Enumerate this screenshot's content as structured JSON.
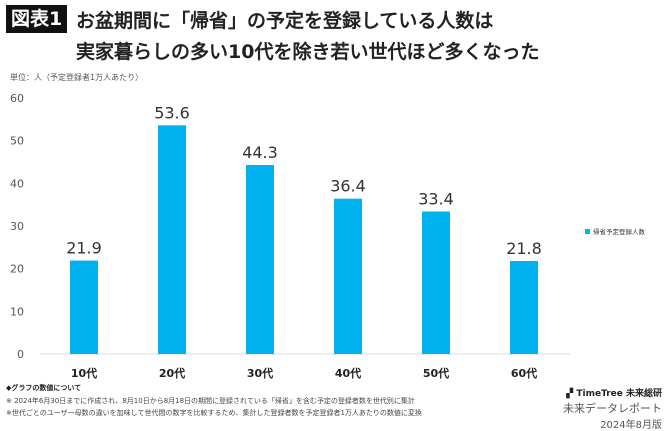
{
  "header": {
    "badge": "図表1",
    "title_line1": "お盆期間に「帰省」の予定を登録している人数は",
    "title_line2": "実家暮らしの多い10代を除き若い世代ほど多くなった",
    "unit": "単位：人（予定登録者1万人あたり）"
  },
  "chart_data": {
    "type": "bar",
    "categories": [
      "10代",
      "20代",
      "30代",
      "40代",
      "50代",
      "60代"
    ],
    "series": [
      {
        "name": "帰省予定登録人数",
        "values": [
          21.9,
          53.6,
          44.3,
          36.4,
          33.4,
          21.8
        ]
      }
    ],
    "ylim": [
      0,
      60
    ],
    "yticks": [
      0,
      10,
      20,
      30,
      40,
      50,
      60
    ],
    "grid": false,
    "legend": "right",
    "color": "#00b3ee"
  },
  "footer": {
    "note_title": "◆グラフの数値について",
    "note1": "※ 2024年6月30日までに作成され、8月10日から8月18日の期間に登録されている「帰省」を含む予定の登録者数を世代別に集計",
    "note2": "※世代ごとのユーザー母数の違いを加味して世代間の数字を比較するため、集計した登録者数を予定登録者1万人あたりの数値に変換"
  },
  "brand": {
    "logo": "TimeTree 未来総研",
    "subtitle": "未来データレポート",
    "date": "2024年8月版"
  }
}
